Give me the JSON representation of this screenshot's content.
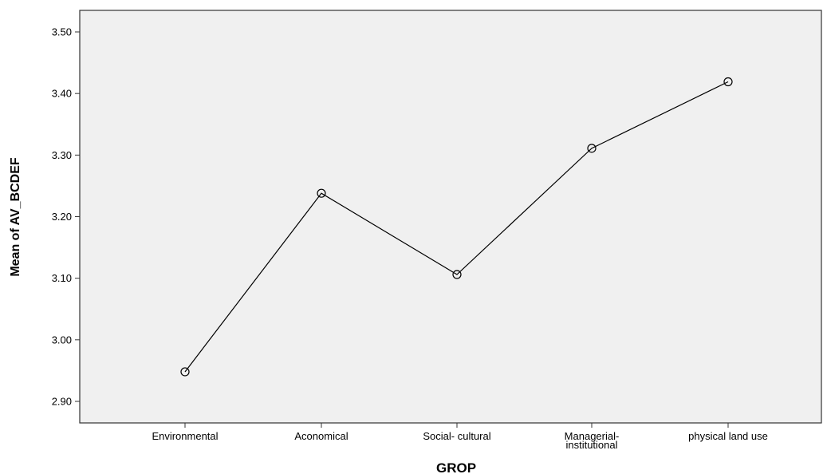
{
  "chart_data": {
    "type": "line",
    "xlabel": "GROP",
    "ylabel": "Mean of AV_BCDEF",
    "categories": [
      [
        "Environmental"
      ],
      [
        "Aconomical"
      ],
      [
        "Social- cultural"
      ],
      [
        "Managerial-",
        "institutional"
      ],
      [
        "physical land use"
      ]
    ],
    "series": [
      {
        "values": [
          2.948,
          3.238,
          3.106,
          3.311,
          3.419
        ]
      }
    ],
    "ylim": [
      2.865,
      3.535
    ],
    "yticks": [
      2.9,
      3.0,
      3.1,
      3.2,
      3.3,
      3.4,
      3.5
    ],
    "ytick_format_decimals": 2,
    "grid": false,
    "legend": "none",
    "marker": "open-circle",
    "colors": {
      "plot_bg": "#f0f0f0",
      "line": "#000000",
      "frame": "#333333"
    }
  }
}
